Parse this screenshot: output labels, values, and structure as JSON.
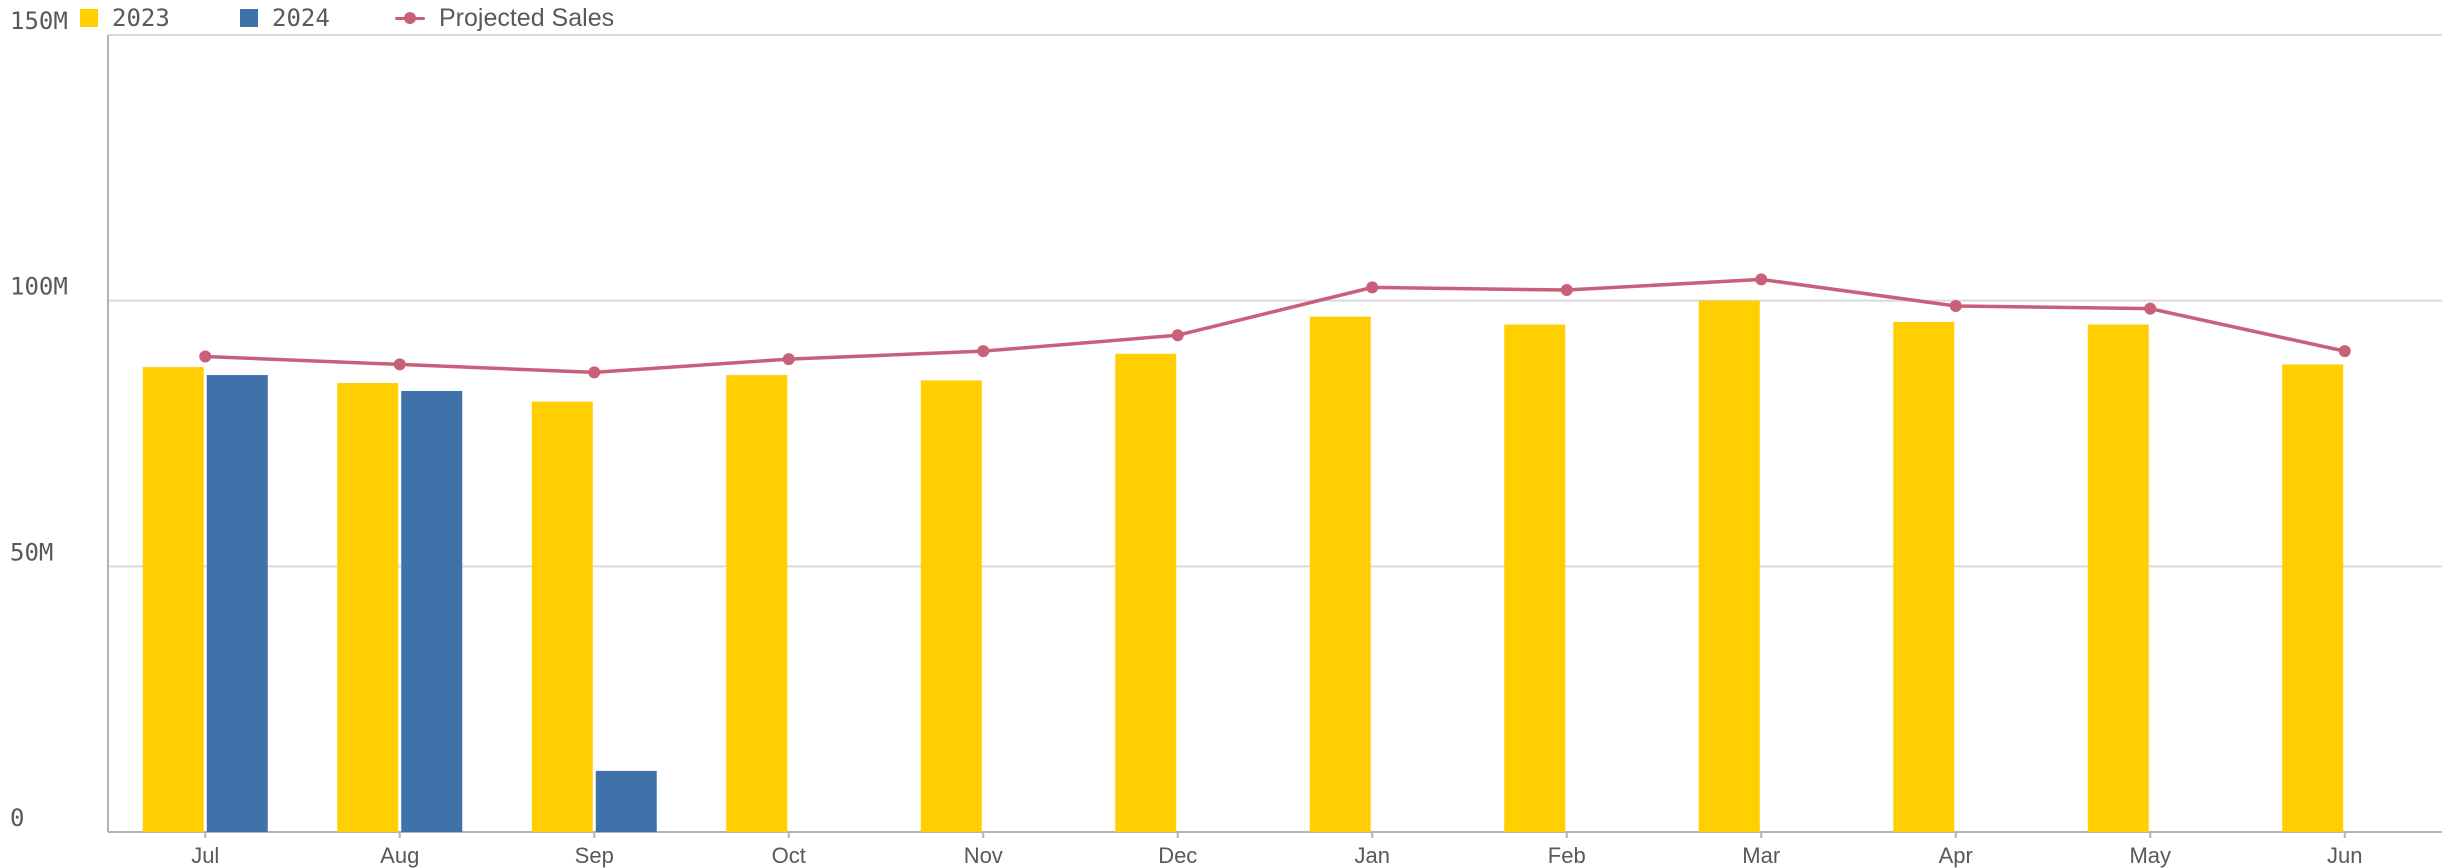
{
  "legend": {
    "items": [
      {
        "label": "2023",
        "kind": "bar",
        "color": "#FFCF02"
      },
      {
        "label": "2024",
        "kind": "bar",
        "color": "#3F72A8"
      },
      {
        "label": "Projected Sales",
        "kind": "line",
        "color": "#C8607A"
      }
    ]
  },
  "chart_data": {
    "type": "bar",
    "categories": [
      "Jul",
      "Aug",
      "Sep",
      "Oct",
      "Nov",
      "Dec",
      "Jan",
      "Feb",
      "Mar",
      "Apr",
      "May",
      "Jun"
    ],
    "series": [
      {
        "name": "2023",
        "type": "bar",
        "color": "#FFCF02",
        "values": [
          87.5,
          84.5,
          81,
          86,
          85,
          90,
          97,
          95.5,
          100,
          96,
          95.5,
          88
        ]
      },
      {
        "name": "2024",
        "type": "bar",
        "color": "#3F72A8",
        "values": [
          86,
          83,
          11.5,
          null,
          null,
          null,
          null,
          null,
          null,
          null,
          null,
          null
        ]
      },
      {
        "name": "Projected Sales",
        "type": "line",
        "color": "#C8607A",
        "values": [
          89.5,
          88,
          86.5,
          89,
          90.5,
          93.5,
          102.5,
          102,
          104,
          99,
          98.5,
          90.5
        ]
      }
    ],
    "yticks": [
      "0",
      "50M",
      "100M",
      "150M"
    ],
    "ytick_values": [
      0,
      50,
      100,
      150
    ],
    "ylim": [
      0,
      150
    ],
    "units": "M",
    "grid": true,
    "legend_position": "top-left",
    "title": "",
    "xlabel": "",
    "ylabel": ""
  }
}
